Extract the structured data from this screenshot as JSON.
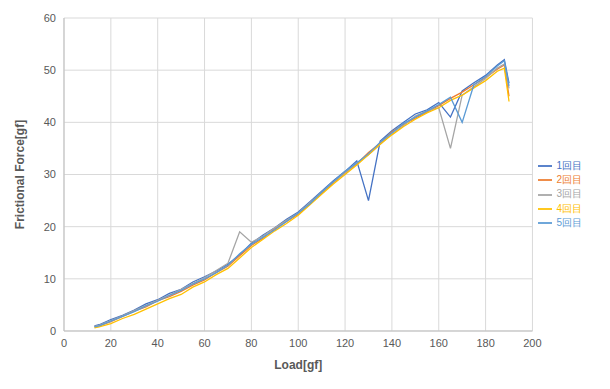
{
  "chart_data": {
    "type": "line",
    "x_label": "Load[gf]",
    "y_label": "Frictional Force[gf]",
    "x": [
      13,
      15,
      20,
      25,
      30,
      35,
      40,
      45,
      50,
      55,
      60,
      65,
      70,
      75,
      80,
      85,
      90,
      95,
      100,
      105,
      110,
      115,
      120,
      125,
      130,
      135,
      140,
      145,
      150,
      155,
      160,
      165,
      170,
      175,
      180,
      185,
      188,
      190
    ],
    "series": [
      {
        "name": "1回目",
        "color": "#4472c4",
        "values": [
          1.0,
          1.2,
          2.2,
          3.0,
          4.0,
          5.2,
          6.0,
          7.2,
          8.0,
          9.4,
          10.4,
          11.5,
          12.8,
          14.6,
          16.8,
          18.4,
          19.8,
          21.4,
          22.8,
          24.8,
          26.8,
          28.8,
          30.6,
          32.6,
          25.0,
          36.4,
          38.4,
          40.0,
          41.6,
          42.4,
          43.8,
          41.0,
          46.0,
          47.6,
          49.0,
          51.0,
          52.0,
          47.5
        ]
      },
      {
        "name": "2回目",
        "color": "#ed7d31",
        "values": [
          0.8,
          1.0,
          1.8,
          2.8,
          3.8,
          4.6,
          5.8,
          6.6,
          7.6,
          8.8,
          9.8,
          11.2,
          12.4,
          14.4,
          16.4,
          17.8,
          19.6,
          21.0,
          22.4,
          24.4,
          26.4,
          28.4,
          30.4,
          32.0,
          34.2,
          36.0,
          38.2,
          39.6,
          40.8,
          42.0,
          43.2,
          44.6,
          45.8,
          47.2,
          48.6,
          50.2,
          51.0,
          45.0
        ]
      },
      {
        "name": "3回目",
        "color": "#a5a5a5",
        "values": [
          0.9,
          1.1,
          2.0,
          2.9,
          3.9,
          4.9,
          5.9,
          6.9,
          8.0,
          9.1,
          10.2,
          11.6,
          13.0,
          19.0,
          17.0,
          18.2,
          19.8,
          21.2,
          22.6,
          24.6,
          26.6,
          28.6,
          30.2,
          32.2,
          33.8,
          35.8,
          37.8,
          39.4,
          41.2,
          42.2,
          42.8,
          35.0,
          45.2,
          46.8,
          48.4,
          50.4,
          51.2,
          46.5
        ]
      },
      {
        "name": "4回目",
        "color": "#ffc000",
        "values": [
          0.6,
          0.8,
          1.4,
          2.4,
          3.2,
          4.2,
          5.2,
          6.2,
          7.0,
          8.4,
          9.4,
          10.8,
          12.0,
          14.0,
          16.0,
          17.6,
          19.2,
          20.6,
          22.2,
          24.2,
          26.2,
          28.2,
          30.0,
          31.8,
          33.8,
          35.8,
          37.6,
          39.2,
          40.6,
          41.8,
          42.8,
          44.2,
          45.2,
          46.6,
          48.0,
          49.8,
          50.4,
          44.0
        ]
      },
      {
        "name": "5回目",
        "color": "#5b9bd5",
        "values": [
          0.8,
          1.0,
          1.9,
          2.8,
          3.7,
          4.8,
          5.7,
          6.8,
          7.8,
          9.0,
          10.0,
          11.2,
          12.6,
          14.8,
          16.6,
          18.0,
          19.4,
          21.0,
          22.6,
          24.4,
          26.6,
          28.6,
          30.6,
          32.2,
          34.0,
          36.2,
          38.0,
          39.8,
          41.0,
          42.2,
          43.4,
          44.8,
          40.0,
          47.2,
          48.8,
          50.8,
          51.8,
          47.0
        ]
      }
    ],
    "xlim": [
      0,
      200
    ],
    "xticks": [
      0,
      20,
      40,
      60,
      80,
      100,
      120,
      140,
      160,
      180,
      200
    ],
    "ylim": [
      0,
      60
    ],
    "yticks": [
      0,
      10,
      20,
      30,
      40,
      50,
      60
    ],
    "grid": true,
    "legend": "right",
    "marker": "none",
    "line_style": "solid"
  }
}
